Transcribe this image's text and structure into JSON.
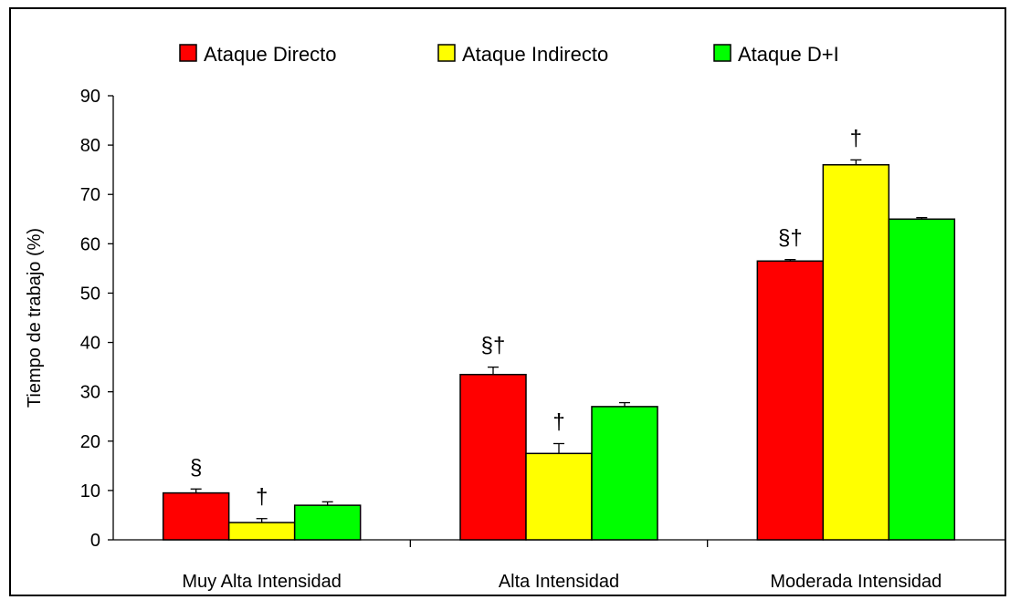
{
  "chart_data": {
    "type": "bar",
    "title": "",
    "xlabel": "",
    "ylabel": "Tiempo de trabajo (%)",
    "ylim": [
      0,
      90
    ],
    "yticks": [
      0,
      10,
      20,
      30,
      40,
      50,
      60,
      70,
      80,
      90
    ],
    "categories": [
      "Muy Alta Intensidad",
      "Alta Intensidad",
      "Moderada Intensidad"
    ],
    "series": [
      {
        "name": "Ataque Directo",
        "color": "#ff0000",
        "values": [
          9.5,
          33.5,
          56.5
        ],
        "errors": [
          0.8,
          1.5,
          0.3
        ]
      },
      {
        "name": "Ataque Indirecto",
        "color": "#ffff00",
        "values": [
          3.5,
          17.5,
          76
        ],
        "errors": [
          0.8,
          2.0,
          1.0
        ]
      },
      {
        "name": "Ataque D+I",
        "color": "#00ff00",
        "values": [
          7,
          27,
          65
        ],
        "errors": [
          0.7,
          0.8,
          0.3
        ]
      }
    ],
    "annotations": [
      {
        "category": 0,
        "series": 0,
        "text": "§"
      },
      {
        "category": 0,
        "series": 1,
        "text": "†"
      },
      {
        "category": 1,
        "series": 0,
        "text": "§†"
      },
      {
        "category": 1,
        "series": 1,
        "text": "†"
      },
      {
        "category": 2,
        "series": 0,
        "text": "§†"
      },
      {
        "category": 2,
        "series": 1,
        "text": "†"
      }
    ],
    "legend": "top",
    "grid": false
  }
}
